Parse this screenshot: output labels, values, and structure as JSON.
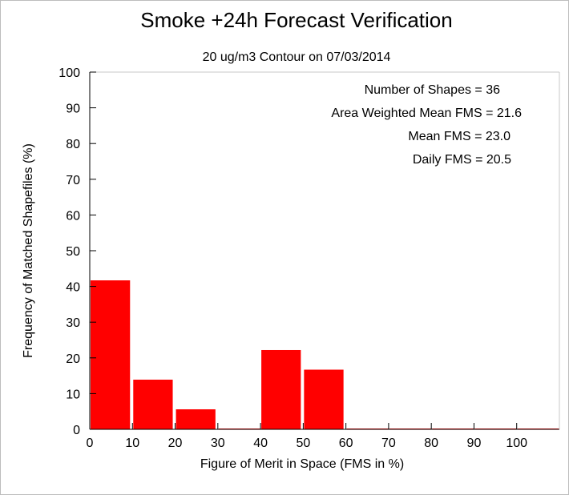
{
  "chart_data": {
    "type": "bar",
    "title": "Smoke +24h Forecast Verification",
    "subtitle": "20 ug/m3 Contour on 07/03/2014",
    "xlabel": "Figure of Merit in Space (FMS in %)",
    "ylabel": "Frequency of Matched Shapefiles (%)",
    "xlim": [
      0,
      110
    ],
    "ylim": [
      0,
      100
    ],
    "x_ticks": [
      0,
      10,
      20,
      30,
      40,
      50,
      60,
      70,
      80,
      90,
      100
    ],
    "y_ticks": [
      0,
      10,
      20,
      30,
      40,
      50,
      60,
      70,
      80,
      90,
      100
    ],
    "bin_width": 10,
    "bins": [
      {
        "start": 0,
        "end": 10,
        "value": 41.7
      },
      {
        "start": 10,
        "end": 20,
        "value": 13.9
      },
      {
        "start": 20,
        "end": 30,
        "value": 5.6
      },
      {
        "start": 30,
        "end": 40,
        "value": 0
      },
      {
        "start": 40,
        "end": 50,
        "value": 22.2
      },
      {
        "start": 50,
        "end": 60,
        "value": 16.7
      },
      {
        "start": 60,
        "end": 70,
        "value": 0
      },
      {
        "start": 70,
        "end": 80,
        "value": 0
      },
      {
        "start": 80,
        "end": 90,
        "value": 0
      },
      {
        "start": 90,
        "end": 100,
        "value": 0
      },
      {
        "start": 100,
        "end": 110,
        "value": 0
      }
    ],
    "bar_color": "#ff0000",
    "grid": false,
    "annotations": [
      "Number of Shapes = 36",
      "Area Weighted Mean FMS = 21.6",
      "Mean FMS = 23.0",
      "Daily FMS = 20.5"
    ]
  }
}
